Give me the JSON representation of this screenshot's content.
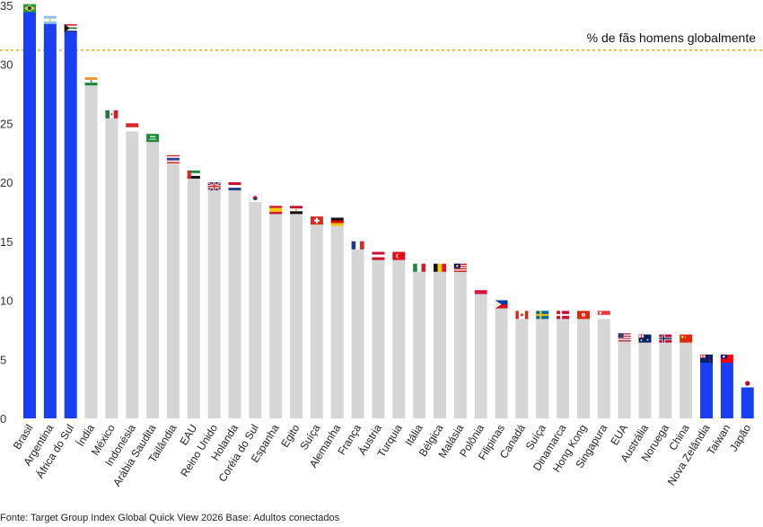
{
  "chart_data": {
    "type": "bar",
    "categories": [
      "Brasil",
      "Argentina",
      "África do Sul",
      "Índia",
      "México",
      "Indonésia",
      "Arábia Saudita",
      "Tailândia",
      "EAU",
      "Reino Unido",
      "Holanda",
      "Coréia do Sul",
      "Espanha",
      "Egito",
      "Suíça",
      "Alemanha",
      "França",
      "Áustria",
      "Turquia",
      "Itália",
      "Bélgica",
      "Malásia",
      "Polônia",
      "Filipinas",
      "Canadá",
      "Suíça",
      "Dinamarca",
      "Hong Kong",
      "Singapura",
      "EUA",
      "Austrália",
      "Noruega",
      "China",
      "Nova Zelândia",
      "Taiwan",
      "Japão"
    ],
    "values": [
      34.5,
      33.5,
      32.8,
      28.3,
      25.5,
      24.4,
      23.5,
      21.7,
      20.4,
      19.4,
      19.4,
      18.4,
      17.4,
      17.4,
      16.5,
      16.4,
      14.4,
      13.5,
      13.5,
      12.5,
      12.5,
      12.5,
      10.6,
      9.4,
      8.5,
      8.5,
      8.5,
      8.5,
      8.5,
      6.6,
      6.5,
      6.5,
      6.5,
      4.8,
      4.8,
      2.7
    ],
    "highlighted": [
      true,
      true,
      true,
      false,
      false,
      false,
      false,
      false,
      false,
      false,
      false,
      false,
      false,
      false,
      false,
      false,
      false,
      false,
      false,
      false,
      false,
      false,
      false,
      false,
      false,
      false,
      false,
      false,
      false,
      false,
      false,
      false,
      false,
      true,
      true,
      true
    ],
    "flags": [
      "brazil",
      "argentina",
      "south-africa",
      "india",
      "mexico",
      "indonesia",
      "saudi-arabia",
      "thailand",
      "uae",
      "united-kingdom",
      "netherlands",
      "south-korea",
      "spain",
      "egypt",
      "switzerland",
      "germany",
      "france",
      "austria",
      "turkey",
      "italy",
      "belgium",
      "malaysia",
      "poland",
      "philippines",
      "canada",
      "sweden",
      "denmark",
      "hong-kong",
      "singapore",
      "usa",
      "australia",
      "norway",
      "china",
      "new-zealand",
      "taiwan",
      "japan"
    ],
    "y_ticks": [
      "35",
      "30",
      "25",
      "20",
      "15",
      "10",
      "5",
      "0"
    ],
    "y_tick_values": [
      35,
      30,
      25,
      20,
      15,
      10,
      5,
      0
    ],
    "ylim": [
      0,
      35
    ],
    "reference_line": {
      "value": 31.2,
      "label": "% de fãs homens globalmente",
      "color": "#e0a100"
    },
    "colors": {
      "highlight": "#1a3ff0",
      "default": "#d6d6d6"
    },
    "grid": false,
    "title": "",
    "xlabel": "",
    "ylabel": ""
  },
  "footer": {
    "source": "Fonte: Target Group Index Global Quick View 2026  Base: Adultos conectados"
  }
}
